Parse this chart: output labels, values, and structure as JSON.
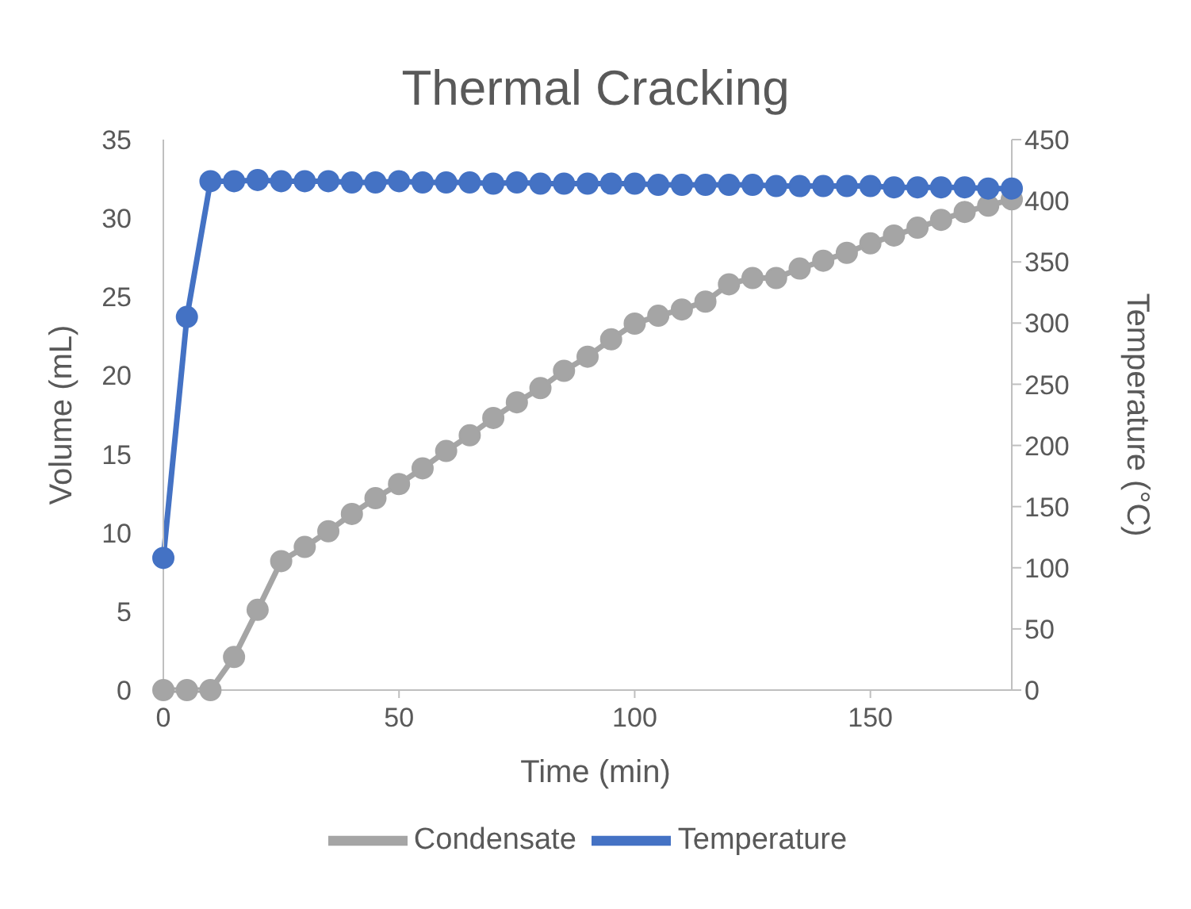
{
  "chart_data": {
    "type": "line",
    "title": "Thermal Cracking",
    "xlabel": "Time (min)",
    "ylabel": "Volume (mL)",
    "y2label": "Temperature (°C)",
    "x": [
      0,
      5,
      10,
      15,
      20,
      25,
      30,
      35,
      40,
      45,
      50,
      55,
      60,
      65,
      70,
      75,
      80,
      85,
      90,
      95,
      100,
      105,
      110,
      115,
      120,
      125,
      130,
      135,
      140,
      145,
      150,
      155,
      160,
      165,
      170,
      175,
      180
    ],
    "series": [
      {
        "name": "Condensate",
        "color": "#a5a5a5",
        "values": [
          0,
          0,
          0,
          2.1,
          5.1,
          8.2,
          9.1,
          10.1,
          11.2,
          12.2,
          13.1,
          14.1,
          15.2,
          16.2,
          17.3,
          18.3,
          19.2,
          20.3,
          21.2,
          22.3,
          23.3,
          23.8,
          24.2,
          24.7,
          25.8,
          26.2,
          26.2,
          26.8,
          27.3,
          27.8,
          28.4,
          28.9,
          29.4,
          29.9,
          30.4,
          30.8,
          31.2
        ]
      },
      {
        "name": "Temperature",
        "color": "#4472c4",
        "axis": "y2",
        "values": [
          108,
          305,
          416,
          416,
          417,
          416,
          416,
          416,
          415,
          415,
          416,
          415,
          415,
          415,
          414,
          415,
          414,
          414,
          414,
          414,
          414,
          413,
          413,
          413,
          413,
          413,
          412,
          412,
          412,
          412,
          412,
          411,
          411,
          411,
          411,
          410,
          410
        ]
      }
    ],
    "xlim": [
      0,
      180
    ],
    "xticks": [
      0,
      50,
      100,
      150
    ],
    "ylim": [
      0,
      35
    ],
    "yticks": [
      0,
      5,
      10,
      15,
      20,
      25,
      30,
      35
    ],
    "y2lim": [
      0,
      450
    ],
    "y2ticks": [
      0,
      50,
      100,
      150,
      200,
      250,
      300,
      350,
      400,
      450
    ],
    "marker": "circle",
    "line_style": "solid",
    "grid": false,
    "legend": "bottom"
  }
}
